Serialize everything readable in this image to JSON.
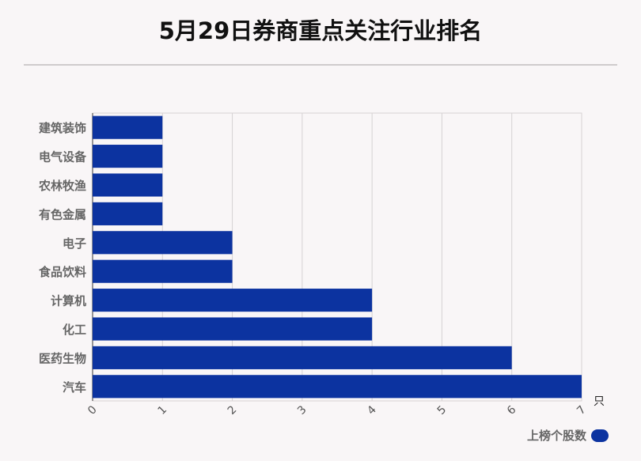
{
  "title": "5月29日券商重点关注行业排名",
  "chart_data": {
    "type": "bar",
    "orientation": "horizontal",
    "categories": [
      "建筑装饰",
      "电气设备",
      "农林牧渔",
      "有色金属",
      "电子",
      "食品饮料",
      "计算机",
      "化工",
      "医药生物",
      "汽车"
    ],
    "series": [
      {
        "name": "上榜个股数",
        "values": [
          1,
          1,
          1,
          1,
          2,
          2,
          4,
          4,
          6,
          7
        ]
      }
    ],
    "x_ticks": [
      "0",
      "1",
      "2",
      "3",
      "4",
      "5",
      "6",
      "7"
    ],
    "xlim": [
      0,
      7
    ],
    "x_unit": "只",
    "grid": true,
    "legend_position": "bottom-right",
    "bar_color": "#0c33a0"
  }
}
